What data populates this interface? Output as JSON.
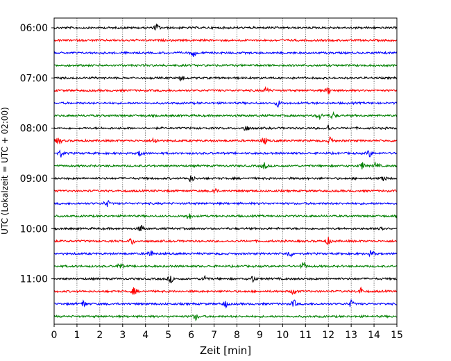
{
  "chart_data": {
    "type": "line",
    "xlabel": "Zeit  [min]",
    "ylabel": "UTC (Lokalzeit = UTC + 02:00)",
    "xlim": [
      0,
      15
    ],
    "x_ticks": [
      0,
      1,
      2,
      3,
      4,
      5,
      6,
      7,
      8,
      9,
      10,
      11,
      12,
      13,
      14,
      15
    ],
    "y_ticks": [
      "06:00",
      "07:00",
      "08:00",
      "09:00",
      "10:00",
      "11:00"
    ],
    "row_interval_minutes": 15,
    "grid": "vertical dotted at each minute",
    "rows": [
      {
        "start": "06:00",
        "color": "#000000",
        "events_min": [
          4.5
        ]
      },
      {
        "start": "06:15",
        "color": "#ff0000",
        "events_min": []
      },
      {
        "start": "06:30",
        "color": "#0000ff",
        "events_min": [
          6.1
        ]
      },
      {
        "start": "06:45",
        "color": "#008000",
        "events_min": []
      },
      {
        "start": "07:00",
        "color": "#000000",
        "events_min": [
          5.6
        ]
      },
      {
        "start": "07:15",
        "color": "#ff0000",
        "events_min": [
          9.3,
          12.0
        ]
      },
      {
        "start": "07:30",
        "color": "#0000ff",
        "events_min": [
          9.8
        ]
      },
      {
        "start": "07:45",
        "color": "#008000",
        "events_min": [
          11.6,
          12.2
        ]
      },
      {
        "start": "08:00",
        "color": "#000000",
        "events_min": [
          8.4,
          12.0
        ]
      },
      {
        "start": "08:15",
        "color": "#ff0000",
        "events_min": [
          0.2,
          4.4,
          9.2,
          12.1
        ]
      },
      {
        "start": "08:30",
        "color": "#0000ff",
        "events_min": [
          0.3,
          3.8,
          13.8
        ]
      },
      {
        "start": "08:45",
        "color": "#008000",
        "events_min": [
          9.2,
          13.5,
          14.1
        ]
      },
      {
        "start": "09:00",
        "color": "#000000",
        "events_min": [
          6.0,
          14.4
        ]
      },
      {
        "start": "09:15",
        "color": "#ff0000",
        "events_min": [
          7.0
        ]
      },
      {
        "start": "09:30",
        "color": "#0000ff",
        "events_min": [
          2.3
        ]
      },
      {
        "start": "09:45",
        "color": "#008000",
        "events_min": [
          5.9
        ]
      },
      {
        "start": "10:00",
        "color": "#000000",
        "events_min": [
          3.8,
          14.3
        ]
      },
      {
        "start": "10:15",
        "color": "#ff0000",
        "events_min": [
          3.4,
          12.0
        ]
      },
      {
        "start": "10:30",
        "color": "#0000ff",
        "events_min": [
          4.2,
          10.3,
          13.9
        ]
      },
      {
        "start": "10:45",
        "color": "#008000",
        "events_min": [
          2.9,
          10.9
        ]
      },
      {
        "start": "11:00",
        "color": "#000000",
        "events_min": [
          5.1,
          6.6,
          8.7
        ]
      },
      {
        "start": "11:15",
        "color": "#ff0000",
        "events_min": [
          3.5,
          10.5,
          13.4
        ]
      },
      {
        "start": "11:30",
        "color": "#0000ff",
        "events_min": [
          1.3,
          7.5,
          10.5,
          13.0
        ]
      },
      {
        "start": "11:45",
        "color": "#008000",
        "events_min": [
          6.2
        ]
      }
    ]
  }
}
